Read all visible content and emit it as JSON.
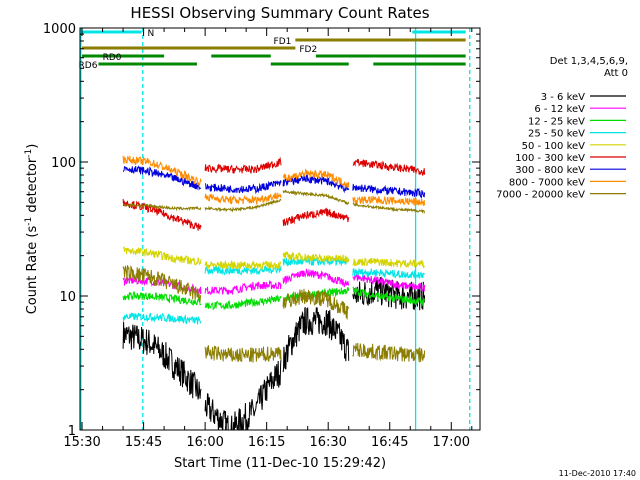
{
  "chart_data": {
    "type": "line",
    "title": "HESSI Observing Summary Count Rates",
    "xlabel": "Start Time (11-Dec-10 15:29:42)",
    "ylabel_parts": [
      "Count Rate (s",
      "-1",
      " detector",
      "-1",
      ")"
    ],
    "yscale": "log",
    "ylim": [
      1,
      1000
    ],
    "xlim_minutes": [
      -0.5,
      97.0
    ],
    "x_ticks": [
      {
        "m": 0,
        "label": "15:30"
      },
      {
        "m": 15,
        "label": "15:45"
      },
      {
        "m": 30,
        "label": "16:00"
      },
      {
        "m": 45,
        "label": "16:15"
      },
      {
        "m": 60,
        "label": "16:30"
      },
      {
        "m": 75,
        "label": "16:45"
      },
      {
        "m": 90,
        "label": "17:00"
      }
    ],
    "y_ticks": [
      {
        "v": 1,
        "label": "1"
      },
      {
        "v": 10,
        "label": "10"
      },
      {
        "v": 100,
        "label": "100"
      },
      {
        "v": 1000,
        "label": "1000"
      }
    ],
    "legend": {
      "header": [
        "Det 1,3,4,5,6,9,",
        "Att 0"
      ],
      "entries": [
        {
          "label": "3 - 6 keV",
          "color": "#000000"
        },
        {
          "label": "6 - 12 keV",
          "color": "#ff00ff"
        },
        {
          "label": "12 - 25 keV",
          "color": "#00dd00"
        },
        {
          "label": "25 - 50 keV",
          "color": "#00e5e5"
        },
        {
          "label": "50 - 100 keV",
          "color": "#d4d400"
        },
        {
          "label": "100 - 300 keV",
          "color": "#dd0000"
        },
        {
          "label": "300 - 800 keV",
          "color": "#0000dd"
        },
        {
          "label": "800 - 7000 keV",
          "color": "#ff8c00"
        },
        {
          "label": "7000 - 20000 keV",
          "color": "#8b7d00"
        }
      ]
    },
    "segments_minutes": [
      [
        10,
        29
      ],
      [
        30,
        48.5
      ],
      [
        49,
        65
      ],
      [
        66,
        83.5
      ]
    ],
    "series": [
      {
        "name": "3 - 6 keV",
        "color": "#000000",
        "levels": [
          [
            5.2,
            4.5,
            3.0,
            1.8
          ],
          [
            1.5,
            1.0,
            1.4,
            2.8
          ],
          [
            3.2,
            6.5,
            6.5,
            3.8
          ],
          [
            10,
            11,
            10,
            10
          ]
        ]
      },
      {
        "name": "6 - 12 keV",
        "color": "#ff00ff",
        "levels": [
          [
            13,
            13,
            12,
            11
          ],
          [
            11,
            11,
            12,
            12
          ],
          [
            13,
            15,
            14,
            12
          ],
          [
            14,
            13,
            12,
            11.5
          ]
        ]
      },
      {
        "name": "12 - 25 keV",
        "color": "#00dd00",
        "levels": [
          [
            10,
            10,
            9.5,
            9
          ],
          [
            8.5,
            8.5,
            9,
            9.5
          ],
          [
            9.5,
            10,
            10.5,
            11
          ],
          [
            11,
            10,
            9.5,
            9
          ]
        ]
      },
      {
        "name": "25 - 50 keV",
        "color": "#00e5e5",
        "levels": [
          [
            7,
            7,
            6.8,
            6.5
          ],
          [
            15.5,
            15.5,
            15.5,
            16
          ],
          [
            18,
            18,
            18,
            18
          ],
          [
            15,
            15,
            14.5,
            14.5
          ]
        ]
      },
      {
        "name": "50 - 100 keV",
        "color": "#d4d400",
        "levels": [
          [
            22,
            21,
            19,
            18
          ],
          [
            17,
            17,
            17,
            17
          ],
          [
            20,
            19.5,
            19,
            19
          ],
          [
            18,
            18,
            17.5,
            17.5
          ]
        ]
      },
      {
        "name": "100 - 300 keV",
        "color": "#dd0000",
        "levels": [
          [
            50,
            45,
            38,
            32
          ],
          [
            90,
            88,
            88,
            100
          ],
          [
            35,
            40,
            42,
            38
          ],
          [
            100,
            95,
            90,
            85
          ]
        ]
      },
      {
        "name": "300 - 800 keV",
        "color": "#0000dd",
        "levels": [
          [
            90,
            85,
            75,
            65
          ],
          [
            65,
            63,
            63,
            70
          ],
          [
            70,
            75,
            72,
            62
          ],
          [
            65,
            62,
            60,
            58
          ]
        ]
      },
      {
        "name": "800 - 7000 keV",
        "color": "#ff8c00",
        "levels": [
          [
            105,
            100,
            85,
            70
          ],
          [
            55,
            52,
            52,
            57
          ],
          [
            75,
            82,
            80,
            67
          ],
          [
            52,
            52,
            51,
            50
          ]
        ]
      },
      {
        "name": "7000 - 20000 keV",
        "color": "#8b7d00",
        "levels": [
          [
            15,
            14,
            12,
            10
          ],
          [
            3.8,
            3.6,
            3.6,
            3.8
          ],
          [
            9,
            10,
            9.5,
            7.5
          ],
          [
            4,
            3.8,
            3.7,
            3.6
          ]
        ]
      }
    ],
    "extra_series": [
      {
        "name": "7000 - 20000 keV",
        "color": "#8b7d00",
        "values_per_segment": [
          [
            48,
            47,
            45,
            45
          ],
          [
            45,
            44,
            46,
            52
          ],
          [
            60,
            58,
            56,
            49
          ],
          [
            48,
            46,
            44,
            43
          ]
        ]
      }
    ],
    "status_bars": [
      {
        "label": "N",
        "color": "#00e5e5",
        "row": 1,
        "ranges": [
          [
            0,
            14.5
          ],
          [
            80.5,
            93.5
          ]
        ]
      },
      {
        "label": "FD1",
        "color": "#8b7d00",
        "row": 2,
        "ranges": [
          [
            52,
            93.5
          ]
        ]
      },
      {
        "label": "FD2",
        "color": "#8b7d00",
        "row": 3,
        "ranges": [
          [
            0,
            52
          ]
        ]
      },
      {
        "label": "RD0",
        "color": "#008800",
        "row": 4,
        "ranges": [
          [
            0,
            20
          ]
        ]
      },
      {
        "label": "RD6",
        "color": "#008800",
        "row": 5,
        "ranges": [
          [
            4,
            28
          ]
        ]
      },
      {
        "label": "",
        "color": "#008800",
        "row": 4,
        "ranges": [
          [
            31.5,
            46
          ],
          [
            57,
            93.5
          ]
        ]
      },
      {
        "label": "",
        "color": "#008800",
        "row": 5,
        "ranges": [
          [
            46,
            65
          ],
          [
            71,
            93.5
          ]
        ]
      }
    ],
    "vlines_minutes": [
      {
        "m": -0.3,
        "dash": false
      },
      {
        "m": 14.8,
        "dash": true
      },
      {
        "m": 81.3,
        "dash": false
      },
      {
        "m": 94.5,
        "dash": true
      }
    ],
    "footer": "11-Dec-2010 17:40"
  }
}
